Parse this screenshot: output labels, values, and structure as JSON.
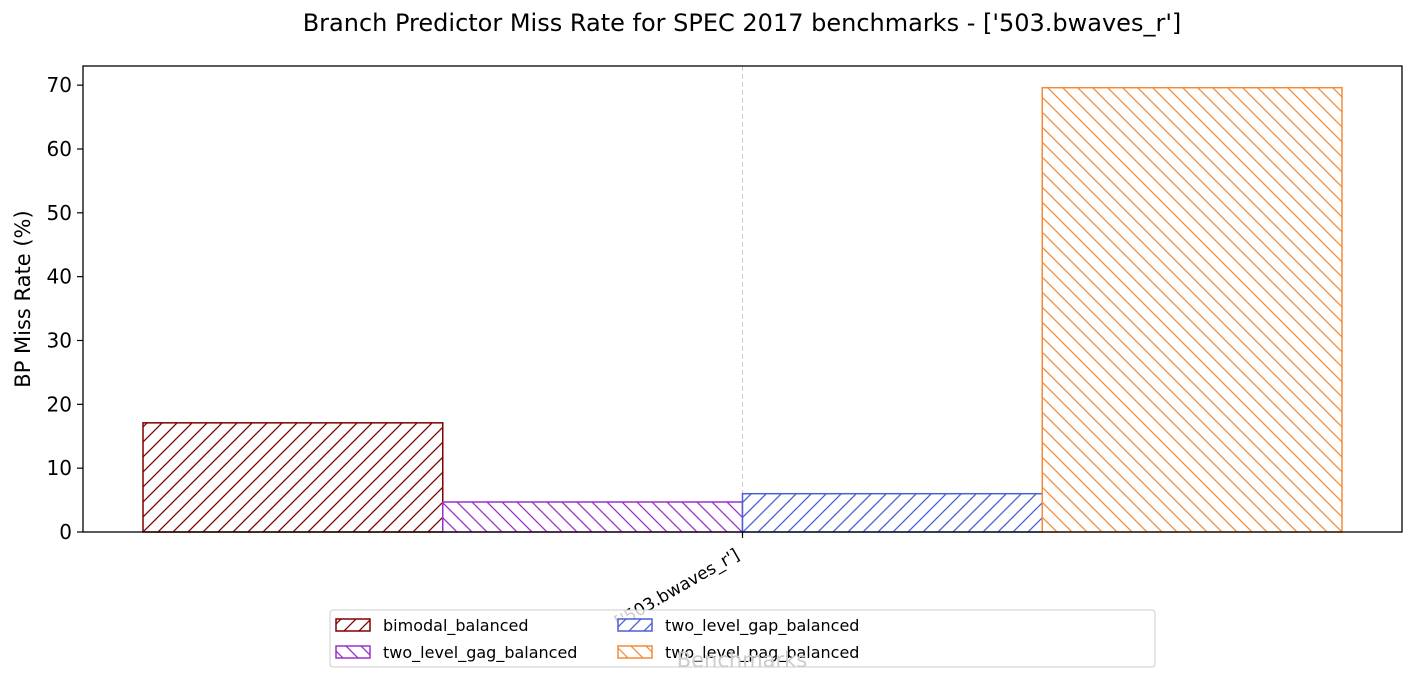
{
  "chart_data": {
    "type": "bar",
    "title": "Branch Predictor Miss Rate for SPEC 2017 benchmarks - ['503.bwaves_r']",
    "xlabel": "Benchmarks",
    "ylabel": "BP Miss Rate (%)",
    "categories": [
      "['503.bwaves_r']"
    ],
    "ylim": [
      0,
      73
    ],
    "yticks": [
      0,
      10,
      20,
      30,
      40,
      50,
      60,
      70
    ],
    "grid": "x-axis only, dashed",
    "legend_position": "bottom-center",
    "series": [
      {
        "name": "bimodal_balanced",
        "values": [
          17.1
        ],
        "color": "#800000",
        "hatch": "/"
      },
      {
        "name": "two_level_gag_balanced",
        "values": [
          4.7
        ],
        "color": "#9b30c8",
        "hatch": "\\"
      },
      {
        "name": "two_level_gap_balanced",
        "values": [
          6.0
        ],
        "color": "#4b5fd6",
        "hatch": "/"
      },
      {
        "name": "two_level_pag_balanced",
        "values": [
          69.6
        ],
        "color": "#f28c3c",
        "hatch": "\\"
      }
    ]
  }
}
